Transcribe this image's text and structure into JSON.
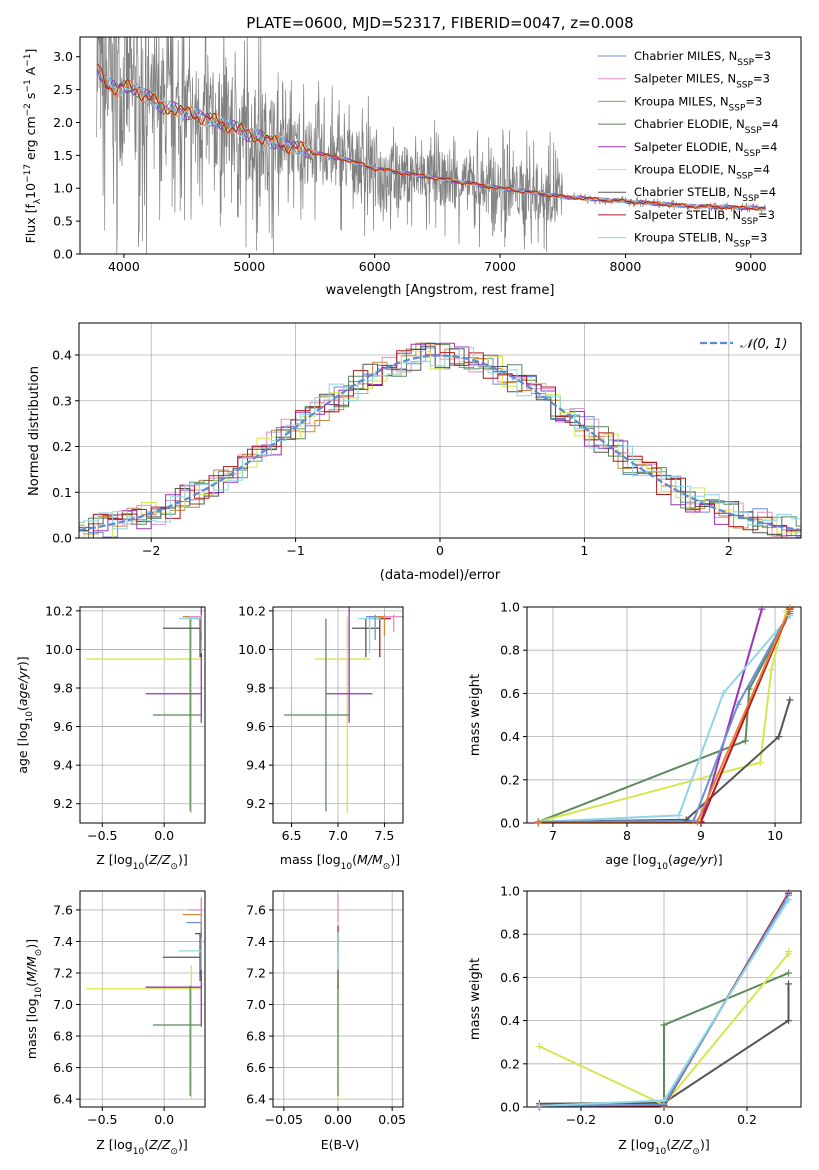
{
  "colors": {
    "Chabrier MILES": "#6b8fd6",
    "Salpeter MILES": "#e38fc1",
    "Kroupa MILES": "#c98a3a",
    "Chabrier ELODIE": "#5d8a5d",
    "Salpeter ELODIE": "#9b30b8",
    "Kroupa ELODIE": "#d6e64d",
    "Chabrier STELIB": "#555555",
    "Salpeter STELIB": "#b11c1c",
    "Kroupa STELIB": "#8fd6e3",
    "data": "#808080",
    "gaussian": "#5b8bd6",
    "orange": "#f07a3a"
  },
  "chart_data": [
    {
      "type": "line",
      "title": "PLATE=0600, MJD=52317, FIBERID=0047, z=0.008",
      "xlabel": "wavelength [Angstrom, rest frame]",
      "ylabel": "Flux [f_λ 10^-17 erg cm^-2 s^-1 A^-1]",
      "ylabel_parts": {
        "main": "Flux [f",
        "sub": "λ",
        "mid": "10",
        "exp1": "−17",
        "unit": " erg cm",
        "exp2": "−2",
        "s": " s",
        "exp3": "−1",
        "a": " A",
        "exp4": "−1",
        "end": "]"
      },
      "xlim": [
        3650,
        9400
      ],
      "ylim": [
        0,
        3.3
      ],
      "xticks": [
        4000,
        5000,
        6000,
        7000,
        8000,
        9000
      ],
      "yticks": [
        0.0,
        0.5,
        1.0,
        1.5,
        2.0,
        2.5,
        3.0
      ],
      "legend_position": "top-right",
      "legend": [
        {
          "label": "Chabrier MILES, N",
          "sub": "SSP",
          "val": "=3",
          "key": "Chabrier MILES"
        },
        {
          "label": "Salpeter MILES, N",
          "sub": "SSP",
          "val": "=3",
          "key": "Salpeter MILES"
        },
        {
          "label": "Kroupa MILES, N",
          "sub": "SSP",
          "val": "=3",
          "key": "Kroupa MILES"
        },
        {
          "label": "Chabrier ELODIE, N",
          "sub": "SSP",
          "val": "=4",
          "key": "Chabrier ELODIE"
        },
        {
          "label": "Salpeter ELODIE, N",
          "sub": "SSP",
          "val": "=4",
          "key": "Salpeter ELODIE"
        },
        {
          "label": "Kroupa ELODIE, N",
          "sub": "SSP",
          "val": "=4",
          "key": "Kroupa ELODIE"
        },
        {
          "label": "Chabrier STELIB, N",
          "sub": "SSP",
          "val": "=4",
          "key": "Chabrier STELIB"
        },
        {
          "label": "Salpeter STELIB, N",
          "sub": "SSP",
          "val": "=3",
          "key": "Salpeter STELIB"
        },
        {
          "label": "Kroupa STELIB, N",
          "sub": "SSP",
          "val": "=3",
          "key": "Kroupa STELIB"
        }
      ],
      "continuum": {
        "x": [
          3780,
          3850,
          3950,
          4000,
          4100,
          4300,
          4500,
          4800,
          5000,
          5200,
          5500,
          5800,
          6000,
          6500,
          7000,
          7500,
          8000,
          8500,
          9000,
          9120
        ],
        "y": [
          2.9,
          2.6,
          2.5,
          2.55,
          2.5,
          2.25,
          2.15,
          1.98,
          1.82,
          1.7,
          1.55,
          1.42,
          1.3,
          1.15,
          1.0,
          0.87,
          0.8,
          0.73,
          0.7,
          0.69
        ]
      }
    },
    {
      "type": "line",
      "xlabel": "(data-model)/error",
      "ylabel": "Normed distribution",
      "xlim": [
        -2.5,
        2.5
      ],
      "ylim": [
        0,
        0.47
      ],
      "xticks": [
        -2,
        -1,
        0,
        1,
        2
      ],
      "yticks": [
        0.0,
        0.1,
        0.2,
        0.3,
        0.4
      ],
      "legend_position": "top-right",
      "legend": [
        {
          "label": "𝒩(0, 1)",
          "key": "gaussian"
        }
      ],
      "grid": true
    },
    {
      "type": "scatter",
      "xlabel": "Z [log10(Z/Z☉)]",
      "xlabel_parts": {
        "a": "Z [log",
        "sub": "10",
        "b": "(",
        "i": "Z/Z",
        "sub2": "⊙",
        "c": ")]"
      },
      "ylabel": "age [log10(age/yr)]",
      "ylabel_parts": {
        "a": "age  [log",
        "sub": "10",
        "b": "(",
        "i": "age/yr",
        "c": ")]"
      },
      "xlim": [
        -0.68,
        0.33
      ],
      "ylim": [
        9.1,
        10.22
      ],
      "xticks": [
        -0.5,
        0.0
      ],
      "xtick_labels": [
        "−0.5",
        "0.0"
      ],
      "yticks": [
        9.2,
        9.4,
        9.6,
        9.8,
        10.0,
        10.2
      ],
      "points": [
        {
          "key": "Kroupa ELODIE",
          "x": 0.22,
          "y": 9.95,
          "xerr": [
            0.85,
            0.08
          ],
          "yerr": [
            0.8,
            0.22
          ]
        },
        {
          "key": "Salpeter ELODIE",
          "x": 0.3,
          "y": 9.77,
          "xerr": [
            0.45,
            0.0
          ],
          "yerr": [
            0.15,
            0.45
          ]
        },
        {
          "key": "Chabrier ELODIE",
          "x": 0.21,
          "y": 9.66,
          "xerr": [
            0.3,
            0.09
          ],
          "yerr": [
            0.5,
            0.5
          ]
        },
        {
          "key": "Chabrier STELIB",
          "x": 0.29,
          "y": 10.11,
          "xerr": [
            0.3,
            0.01
          ],
          "yerr": [
            0.15,
            0.05
          ]
        },
        {
          "key": "Salpeter STELIB",
          "x": 0.3,
          "y": 10.16,
          "xerr": [
            0.05,
            0.0
          ],
          "yerr": [
            0.2,
            0.01
          ]
        },
        {
          "key": "Kroupa STELIB",
          "x": 0.3,
          "y": 10.16,
          "xerr": [
            0.18,
            0.0
          ],
          "yerr": [
            0.18,
            0.01
          ]
        },
        {
          "key": "Chabrier MILES",
          "x": 0.3,
          "y": 10.17,
          "xerr": [
            0.12,
            0.0
          ],
          "yerr": [
            0.12,
            0.01
          ]
        },
        {
          "key": "Kroupa MILES",
          "x": 0.3,
          "y": 10.17,
          "xerr": [
            0.15,
            0.0
          ],
          "yerr": [
            0.1,
            0.01
          ]
        },
        {
          "key": "Salpeter MILES",
          "x": 0.3,
          "y": 10.17,
          "xerr": [
            0.1,
            0.0
          ],
          "yerr": [
            0.08,
            0.01
          ]
        }
      ]
    },
    {
      "type": "scatter",
      "xlabel": "mass [log10(M/M☉)]",
      "xlabel_parts": {
        "a": "mass [log",
        "sub": "10",
        "b": "(",
        "i": "M/M",
        "sub2": "⊙",
        "c": ")]"
      },
      "xlim": [
        6.3,
        7.7
      ],
      "ylim": [
        9.1,
        10.22
      ],
      "xticks": [
        6.5,
        7.0,
        7.5
      ],
      "xtick_labels": [
        "6.5",
        "7.0",
        "7.5"
      ],
      "yticks": [
        9.2,
        9.4,
        9.6,
        9.8,
        10.0,
        10.2
      ],
      "points": [
        {
          "key": "Kroupa ELODIE",
          "x": 7.1,
          "y": 9.95,
          "xerr": [
            0.35,
            0.25
          ],
          "yerr": [
            0.8,
            0.22
          ]
        },
        {
          "key": "Salpeter ELODIE",
          "x": 7.12,
          "y": 9.77,
          "xerr": [
            0.25,
            0.25
          ],
          "yerr": [
            0.15,
            0.45
          ]
        },
        {
          "key": "Chabrier ELODIE",
          "x": 6.87,
          "y": 9.66,
          "xerr": [
            0.45,
            0.25
          ],
          "yerr": [
            0.5,
            0.5
          ]
        },
        {
          "key": "Chabrier STELIB",
          "x": 7.3,
          "y": 10.11,
          "xerr": [
            0.15,
            0.15
          ],
          "yerr": [
            0.15,
            0.05
          ]
        },
        {
          "key": "Salpeter STELIB",
          "x": 7.45,
          "y": 10.16,
          "xerr": [
            0.12,
            0.12
          ],
          "yerr": [
            0.2,
            0.01
          ]
        },
        {
          "key": "Kroupa STELIB",
          "x": 7.34,
          "y": 10.16,
          "xerr": [
            0.12,
            0.12
          ],
          "yerr": [
            0.18,
            0.01
          ]
        },
        {
          "key": "Chabrier MILES",
          "x": 7.4,
          "y": 10.17,
          "xerr": [
            0.1,
            0.1
          ],
          "yerr": [
            0.12,
            0.01
          ]
        },
        {
          "key": "Kroupa MILES",
          "x": 7.5,
          "y": 10.17,
          "xerr": [
            0.1,
            0.1
          ],
          "yerr": [
            0.1,
            0.01
          ]
        },
        {
          "key": "Salpeter MILES",
          "x": 7.6,
          "y": 10.17,
          "xerr": [
            0.1,
            0.1
          ],
          "yerr": [
            0.08,
            0.01
          ]
        }
      ]
    },
    {
      "type": "line",
      "xlabel": "age [log10(age/yr)]",
      "xlabel_parts": {
        "a": "age  [log",
        "sub": "10",
        "b": "(",
        "i": "age/yr",
        "c": ")]"
      },
      "ylabel": "mass weight",
      "xlim": [
        6.65,
        10.35
      ],
      "ylim": [
        0,
        1.0
      ],
      "xticks": [
        7,
        8,
        9,
        10
      ],
      "yticks": [
        0.0,
        0.2,
        0.4,
        0.6,
        0.8,
        1.0
      ],
      "grid": true,
      "series": [
        {
          "key": "Chabrier ELODIE",
          "x": [
            6.8,
            9.6,
            9.65,
            10.2
          ],
          "y": [
            0.005,
            0.38,
            0.62,
            0.97
          ]
        },
        {
          "key": "Kroupa ELODIE",
          "x": [
            6.8,
            9.8,
            9.95,
            10.15
          ],
          "y": [
            0.005,
            0.28,
            0.71,
            0.98
          ]
        },
        {
          "key": "Chabrier STELIB",
          "x": [
            6.8,
            8.8,
            10.05,
            10.2
          ],
          "y": [
            0.005,
            0.015,
            0.4,
            0.57
          ]
        },
        {
          "key": "Salpeter ELODIE",
          "x": [
            6.8,
            9.0,
            9.82
          ],
          "y": [
            0.0,
            0.005,
            0.99
          ]
        },
        {
          "key": "Kroupa STELIB",
          "x": [
            6.8,
            8.7,
            9.3,
            10.2
          ],
          "y": [
            0.005,
            0.035,
            0.6,
            0.96
          ]
        },
        {
          "key": "Chabrier MILES",
          "x": [
            6.8,
            8.9,
            9.5,
            10.2
          ],
          "y": [
            0.005,
            0.01,
            0.55,
            0.98
          ]
        },
        {
          "key": "Kroupa MILES",
          "x": [
            6.8,
            9.0,
            10.2
          ],
          "y": [
            0.0,
            0.005,
            0.99
          ]
        },
        {
          "key": "Salpeter STELIB",
          "x": [
            6.8,
            9.0,
            10.2
          ],
          "y": [
            0.0,
            0.005,
            0.99
          ]
        },
        {
          "key": "orange",
          "x": [
            6.8,
            8.95,
            10.2
          ],
          "y": [
            0.0,
            0.005,
            0.995
          ]
        }
      ]
    },
    {
      "type": "scatter",
      "xlabel": "Z [log10(Z/Z☉)]",
      "xlabel_parts": {
        "a": "Z [log",
        "sub": "10",
        "b": "(",
        "i": "Z/Z",
        "sub2": "⊙",
        "c": ")]"
      },
      "ylabel": "mass [log10(M/M☉)]",
      "ylabel_parts": {
        "a": "mass [log",
        "sub": "10",
        "b": "(",
        "i": "M/M",
        "sub2": "⊙",
        "c": ")]"
      },
      "xlim": [
        -0.68,
        0.33
      ],
      "ylim": [
        6.35,
        7.72
      ],
      "xticks": [
        -0.5,
        0.0
      ],
      "xtick_labels": [
        "−0.5",
        "0.0"
      ],
      "yticks": [
        6.4,
        6.6,
        6.8,
        7.0,
        7.2,
        7.4,
        7.6
      ],
      "points": [
        {
          "key": "Kroupa ELODIE",
          "x": 0.22,
          "y": 7.1,
          "xerr": [
            0.85,
            0.08
          ],
          "yerr": [
            0.7,
            0.15
          ]
        },
        {
          "key": "Salpeter ELODIE",
          "x": 0.3,
          "y": 7.11,
          "xerr": [
            0.45,
            0.0
          ],
          "yerr": [
            0.25,
            0.25
          ]
        },
        {
          "key": "Chabrier ELODIE",
          "x": 0.21,
          "y": 6.87,
          "xerr": [
            0.3,
            0.09
          ],
          "yerr": [
            0.45,
            0.25
          ]
        },
        {
          "key": "Chabrier STELIB",
          "x": 0.29,
          "y": 7.3,
          "xerr": [
            0.3,
            0.01
          ],
          "yerr": [
            0.15,
            0.15
          ]
        },
        {
          "key": "Salpeter STELIB",
          "x": 0.3,
          "y": 7.45,
          "xerr": [
            0.05,
            0.0
          ],
          "yerr": [
            0.12,
            0.12
          ]
        },
        {
          "key": "Kroupa STELIB",
          "x": 0.3,
          "y": 7.34,
          "xerr": [
            0.18,
            0.0
          ],
          "yerr": [
            0.12,
            0.12
          ]
        },
        {
          "key": "Chabrier MILES",
          "x": 0.3,
          "y": 7.52,
          "xerr": [
            0.12,
            0.0
          ],
          "yerr": [
            0.1,
            0.1
          ]
        },
        {
          "key": "Kroupa MILES",
          "x": 0.3,
          "y": 7.57,
          "xerr": [
            0.15,
            0.0
          ],
          "yerr": [
            0.1,
            0.1
          ]
        },
        {
          "key": "Salpeter MILES",
          "x": 0.3,
          "y": 7.6,
          "xerr": [
            0.1,
            0.0
          ],
          "yerr": [
            0.08,
            0.08
          ]
        }
      ]
    },
    {
      "type": "scatter",
      "xlabel": "E(B-V)",
      "xlim": [
        -0.06,
        0.06
      ],
      "ylim": [
        6.35,
        7.72
      ],
      "xticks": [
        -0.05,
        0.0,
        0.05
      ],
      "xtick_labels": [
        "−0.05",
        "0.00",
        "0.05"
      ],
      "yticks": [
        6.4,
        6.6,
        6.8,
        7.0,
        7.2,
        7.4,
        7.6
      ],
      "points": [
        {
          "key": "Kroupa ELODIE",
          "x": 0.0,
          "y": 7.1,
          "xerr": [
            0.0,
            0.0
          ],
          "yerr": [
            0.7,
            0.15
          ]
        },
        {
          "key": "Chabrier ELODIE",
          "x": 0.0,
          "y": 6.87,
          "xerr": [
            0.0,
            0.0
          ],
          "yerr": [
            0.45,
            0.25
          ]
        },
        {
          "key": "Chabrier STELIB",
          "x": 0.0,
          "y": 7.3,
          "xerr": [
            0.0,
            0.0
          ],
          "yerr": [
            0.2,
            0.15
          ]
        },
        {
          "key": "Salpeter STELIB",
          "x": 0.0,
          "y": 7.45,
          "xerr": [
            0.0,
            0.0
          ],
          "yerr": [
            0.12,
            0.05
          ]
        },
        {
          "key": "Kroupa STELIB",
          "x": 0.0,
          "y": 7.34,
          "xerr": [
            0.0,
            0.0
          ],
          "yerr": [
            0.12,
            0.12
          ]
        },
        {
          "key": "Salpeter MILES",
          "x": 0.0,
          "y": 7.6,
          "xerr": [
            0.0,
            0.0
          ],
          "yerr": [
            0.08,
            0.1
          ]
        }
      ]
    },
    {
      "type": "line",
      "xlabel": "Z [log10(Z/Z☉)]",
      "xlabel_parts": {
        "a": "Z [log",
        "sub": "10",
        "b": "(",
        "i": "Z/Z",
        "sub2": "⊙",
        "c": ")]"
      },
      "ylabel": "mass weight",
      "xlim": [
        -0.33,
        0.33
      ],
      "ylim": [
        0,
        1.0
      ],
      "xticks": [
        -0.2,
        0.0,
        0.2
      ],
      "xtick_labels": [
        "−0.2",
        "0.0",
        "0.2"
      ],
      "yticks": [
        0.0,
        0.2,
        0.4,
        0.6,
        0.8,
        1.0
      ],
      "grid": true,
      "series": [
        {
          "key": "Chabrier STELIB",
          "x": [
            -0.3,
            0.0,
            0.3,
            0.3
          ],
          "y": [
            0.015,
            0.02,
            0.4,
            0.57
          ]
        },
        {
          "key": "Chabrier ELODIE",
          "x": [
            -0.3,
            0.0,
            0.0,
            0.3
          ],
          "y": [
            0.005,
            0.0,
            0.38,
            0.62
          ]
        },
        {
          "key": "Kroupa ELODIE",
          "x": [
            -0.3,
            0.0,
            0.3,
            0.3
          ],
          "y": [
            0.28,
            0.01,
            0.71,
            0.72
          ]
        },
        {
          "key": "Salpeter ELODIE",
          "x": [
            -0.3,
            0.0,
            0.3
          ],
          "y": [
            0.0,
            0.005,
            0.99
          ]
        },
        {
          "key": "Salpeter STELIB",
          "x": [
            -0.3,
            0.0,
            0.3
          ],
          "y": [
            0.0,
            0.005,
            0.99
          ]
        },
        {
          "key": "Chabrier MILES",
          "x": [
            -0.3,
            0.0,
            0.3
          ],
          "y": [
            0.005,
            0.01,
            0.98
          ]
        },
        {
          "key": "Kroupa STELIB",
          "x": [
            -0.3,
            0.0,
            0.3
          ],
          "y": [
            0.005,
            0.03,
            0.96
          ]
        }
      ]
    }
  ]
}
